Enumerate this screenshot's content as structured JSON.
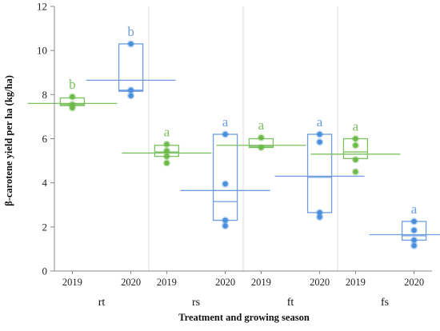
{
  "chart_data": {
    "type": "box",
    "ylabel": "β-carotene yield per ha (kg/ha)",
    "xlabel": "Treatment and growing season",
    "ylim": [
      0,
      12
    ],
    "yticks": [
      0,
      2,
      4,
      6,
      8,
      10,
      12
    ],
    "grid": "vertical separators between treatments",
    "colors": {
      "2019": "#7cc060",
      "2020": "#6e9ee0",
      "point2019": "#6cbb4a",
      "point2020": "#4a8fdc"
    },
    "groups": [
      {
        "label": "rt",
        "seasons": [
          {
            "year": "2019",
            "letter": "b",
            "mean": 7.6,
            "box": [
              7.5,
              7.55,
              7.85
            ],
            "points": [
              7.4,
              7.55,
              7.9
            ]
          },
          {
            "year": "2020",
            "letter": "b",
            "mean": 8.65,
            "box": [
              8.15,
              8.2,
              10.3
            ],
            "points": [
              7.95,
              8.2,
              10.3
            ]
          }
        ]
      },
      {
        "label": "rs",
        "seasons": [
          {
            "year": "2019",
            "letter": "a",
            "mean": 5.35,
            "box": [
              5.2,
              5.4,
              5.7
            ],
            "points": [
              4.9,
              5.2,
              5.45,
              5.75
            ]
          },
          {
            "year": "2020",
            "letter": "a",
            "mean": 3.65,
            "box": [
              2.3,
              3.15,
              6.2
            ],
            "points": [
              2.05,
              2.3,
              3.95,
              6.2
            ]
          }
        ]
      },
      {
        "label": "ft",
        "seasons": [
          {
            "year": "2019",
            "letter": "a",
            "mean": 5.7,
            "box": [
              5.6,
              5.65,
              6.0
            ],
            "points": [
              5.6,
              6.05
            ]
          },
          {
            "year": "2020",
            "letter": "a",
            "mean": 4.3,
            "box": [
              2.65,
              4.25,
              6.2
            ],
            "points": [
              2.45,
              2.65,
              5.85,
              6.2
            ]
          }
        ]
      },
      {
        "label": "fs",
        "seasons": [
          {
            "year": "2019",
            "letter": "a",
            "mean": 5.3,
            "box": [
              5.1,
              5.4,
              6.0
            ],
            "points": [
              4.5,
              5.05,
              5.7,
              6.0
            ]
          },
          {
            "year": "2020",
            "letter": "a",
            "mean": 1.65,
            "box": [
              1.4,
              1.6,
              2.25
            ],
            "points": [
              1.15,
              1.4,
              1.85,
              2.25
            ]
          }
        ]
      }
    ]
  }
}
